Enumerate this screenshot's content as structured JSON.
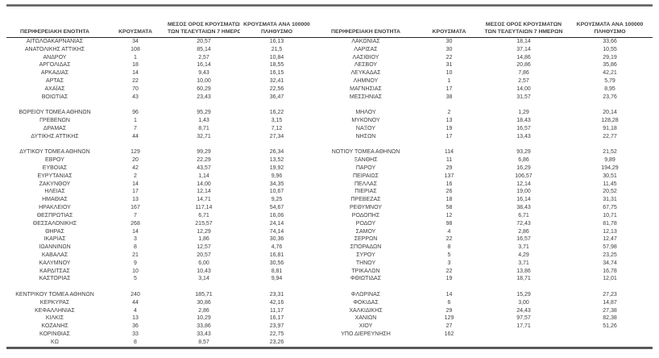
{
  "table": {
    "columns": [
      {
        "key": "region",
        "lines": [
          "ΠΕΡΙΦΕΡΕΙΑΚΗ ΕΝΟΤΗΤΑ"
        ]
      },
      {
        "key": "cases",
        "lines": [
          "ΚΡΟΥΣΜΑΤΑ"
        ]
      },
      {
        "key": "avg7",
        "lines": [
          "ΜΕΣΟΣ ΟΡΟΣ ΚΡΟΥΣΜΑΤΩΝ",
          "ΤΩΝ ΤΕΛΕΥΤΑΙΩΝ 7 ΗΜΕΡΩΝ"
        ]
      },
      {
        "key": "per100k",
        "lines": [
          "ΚΡΟΥΣΜΑΤΑ ΑΝΑ 100000",
          "ΠΛΗΘΥΣΜΟ"
        ]
      }
    ],
    "left_rows": [
      [
        "ΑΙΤΩΛΟΑΚΑΡΝΑΝΙΑΣ",
        "34",
        "20,57",
        "16,13"
      ],
      [
        "ΑΝΑΤΟΛΙΚΗΣ ΑΤΤΙΚΗΣ",
        "108",
        "85,14",
        "21,5"
      ],
      [
        "ΑΝΔΡΟΥ",
        "1",
        "2,57",
        "10,84"
      ],
      [
        "ΑΡΓΟΛΙΔΑΣ",
        "18",
        "16,14",
        "18,55"
      ],
      [
        "ΑΡΚΑΔΙΑΣ",
        "14",
        "9,43",
        "16,15"
      ],
      [
        "ΑΡΤΑΣ",
        "22",
        "10,00",
        "32,41"
      ],
      [
        "ΑΧΑΪΑΣ",
        "70",
        "60,29",
        "22,56"
      ],
      [
        "ΒΟΙΩΤΙΑΣ",
        "43",
        "23,43",
        "36,47"
      ],
      null,
      [
        "ΒΟΡΕΙΟΥ ΤΟΜΕΑ ΑΘΗΝΩΝ",
        "96",
        "95,29",
        "16,22"
      ],
      [
        "ΓΡΕΒΕΝΩΝ",
        "1",
        "1,43",
        "3,15"
      ],
      [
        "ΔΡΑΜΑΣ",
        "7",
        "8,71",
        "7,12"
      ],
      [
        "ΔΥΤΙΚΗΣ ΑΤΤΙΚΗΣ",
        "44",
        "32,71",
        "27,34"
      ],
      null,
      [
        "ΔΥΤΙΚΟΥ ΤΟΜΕΑ ΑΘΗΝΩΝ",
        "129",
        "99,29",
        "26,34"
      ],
      [
        "ΕΒΡΟΥ",
        "20",
        "22,29",
        "13,52"
      ],
      [
        "ΕΥΒΟΙΑΣ",
        "42",
        "43,57",
        "19,92"
      ],
      [
        "ΕΥΡΥΤΑΝΙΑΣ",
        "2",
        "1,14",
        "9,96"
      ],
      [
        "ΖΑΚΥΝΘΟΥ",
        "14",
        "14,00",
        "34,35"
      ],
      [
        "ΗΛΕΙΑΣ",
        "17",
        "12,14",
        "10,67"
      ],
      [
        "ΗΜΑΘΙΑΣ",
        "13",
        "14,71",
        "9,25"
      ],
      [
        "ΗΡΑΚΛΕΙΟΥ",
        "167",
        "117,14",
        "54,67"
      ],
      [
        "ΘΕΣΠΡΩΤΙΑΣ",
        "7",
        "6,71",
        "16,06"
      ],
      [
        "ΘΕΣΣΑΛΟΝΙΚΗΣ",
        "268",
        "215,57",
        "24,14"
      ],
      [
        "ΘΗΡΑΣ",
        "14",
        "12,29",
        "74,14"
      ],
      [
        "ΙΚΑΡΙΑΣ",
        "3",
        "1,86",
        "30,36"
      ],
      [
        "ΙΩΑΝΝΙΝΩΝ",
        "8",
        "12,57",
        "4,76"
      ],
      [
        "ΚΑΒΑΛΑΣ",
        "21",
        "20,57",
        "16,81"
      ],
      [
        "ΚΑΛΥΜΝΟΥ",
        "9",
        "6,00",
        "30,56"
      ],
      [
        "ΚΑΡΔΙΤΣΑΣ",
        "10",
        "10,43",
        "8,81"
      ],
      [
        "ΚΑΣΤΟΡΙΑΣ",
        "5",
        "3,14",
        "9,94"
      ],
      null,
      [
        "ΚΕΝΤΡΙΚΟΥ ΤΟΜΕΑ ΑΘΗΝΩΝ",
        "240",
        "185,71",
        "23,31"
      ],
      [
        "ΚΕΡΚΥΡΑΣ",
        "44",
        "30,86",
        "42,16"
      ],
      [
        "ΚΕΦΑΛΛΗΝΙΑΣ",
        "4",
        "2,86",
        "11,17"
      ],
      [
        "ΚΙΛΚΙΣ",
        "13",
        "10,29",
        "16,17"
      ],
      [
        "ΚΟΖΑΝΗΣ",
        "36",
        "33,86",
        "23,97"
      ],
      [
        "ΚΟΡΙΝΘΙΑΣ",
        "33",
        "33,43",
        "22,75"
      ],
      [
        "ΚΩ",
        "8",
        "8,57",
        "23,26"
      ]
    ],
    "right_rows": [
      [
        "ΛΑΚΩΝΙΑΣ",
        "30",
        "18,14",
        "33,66"
      ],
      [
        "ΛΑΡΙΣΑΣ",
        "30",
        "37,14",
        "10,55"
      ],
      [
        "ΛΑΣΙΘΙΟΥ",
        "22",
        "14,86",
        "29,19"
      ],
      [
        "ΛΕΣΒΟΥ",
        "31",
        "20,86",
        "35,86"
      ],
      [
        "ΛΕΥΚΑΔΑΣ",
        "10",
        "7,86",
        "42,21"
      ],
      [
        "ΛΗΜΝΟΥ",
        "1",
        "2,57",
        "5,79"
      ],
      [
        "ΜΑΓΝΗΣΙΑΣ",
        "17",
        "14,00",
        "8,95"
      ],
      [
        "ΜΕΣΣΗΝΙΑΣ",
        "38",
        "31,57",
        "23,76"
      ],
      null,
      [
        "ΜΗΛΟΥ",
        "2",
        "1,29",
        "20,14"
      ],
      [
        "ΜΥΚΟΝΟΥ",
        "13",
        "18,43",
        "128,28"
      ],
      [
        "ΝΑΞΟΥ",
        "19",
        "16,57",
        "91,18"
      ],
      [
        "ΝΗΣΩΝ",
        "17",
        "13,43",
        "22,77"
      ],
      null,
      [
        "ΝΟΤΙΟΥ ΤΟΜΕΑ ΑΘΗΝΩΝ",
        "114",
        "93,29",
        "21,52"
      ],
      [
        "ΞΑΝΘΗΣ",
        "11",
        "6,86",
        "9,89"
      ],
      [
        "ΠΑΡΟΥ",
        "29",
        "16,29",
        "194,29"
      ],
      [
        "ΠΕΙΡΑΙΩΣ",
        "137",
        "106,57",
        "30,51"
      ],
      [
        "ΠΕΛΛΑΣ",
        "16",
        "12,14",
        "11,45"
      ],
      [
        "ΠΙΕΡΙΑΣ",
        "26",
        "19,00",
        "20,52"
      ],
      [
        "ΠΡΕΒΕΖΑΣ",
        "18",
        "16,14",
        "31,31"
      ],
      [
        "ΡΕΘΥΜΝΟΥ",
        "58",
        "38,43",
        "67,75"
      ],
      [
        "ΡΟΔΟΠΗΣ",
        "12",
        "6,71",
        "10,71"
      ],
      [
        "ΡΟΔΟΥ",
        "98",
        "72,43",
        "81,78"
      ],
      [
        "ΣΑΜΟΥ",
        "4",
        "2,86",
        "12,13"
      ],
      [
        "ΣΕΡΡΩΝ",
        "22",
        "16,57",
        "12,47"
      ],
      [
        "ΣΠΟΡΑΔΩΝ",
        "8",
        "3,71",
        "57,98"
      ],
      [
        "ΣΥΡΟΥ",
        "5",
        "4,29",
        "23,25"
      ],
      [
        "ΤΗΝΟΥ",
        "3",
        "3,71",
        "34,74"
      ],
      [
        "ΤΡΙΚΑΛΩΝ",
        "22",
        "13,86",
        "16,78"
      ],
      [
        "ΦΘΙΩΤΙΔΑΣ",
        "19",
        "18,71",
        "12,01"
      ],
      null,
      [
        "ΦΛΩΡΙΝΑΣ",
        "14",
        "15,29",
        "27,23"
      ],
      [
        "ΦΟΚΙΔΑΣ",
        "6",
        "3,00",
        "14,87"
      ],
      [
        "ΧΑΛΚΙΔΙΚΗΣ",
        "29",
        "24,43",
        "27,38"
      ],
      [
        "ΧΑΝΙΩΝ",
        "129",
        "97,57",
        "82,38"
      ],
      [
        "ΧΙΟΥ",
        "27",
        "17,71",
        "51,26"
      ],
      [
        "ΥΠΟ ΔΙΕΡΕΥΝΗΣΗ",
        "162",
        "",
        ""
      ],
      null
    ],
    "colors": {
      "text": "#3d3d3d",
      "top_rule": "#474747",
      "header_rule": "#262626",
      "bottom_rule": "#5a5a5a"
    }
  }
}
